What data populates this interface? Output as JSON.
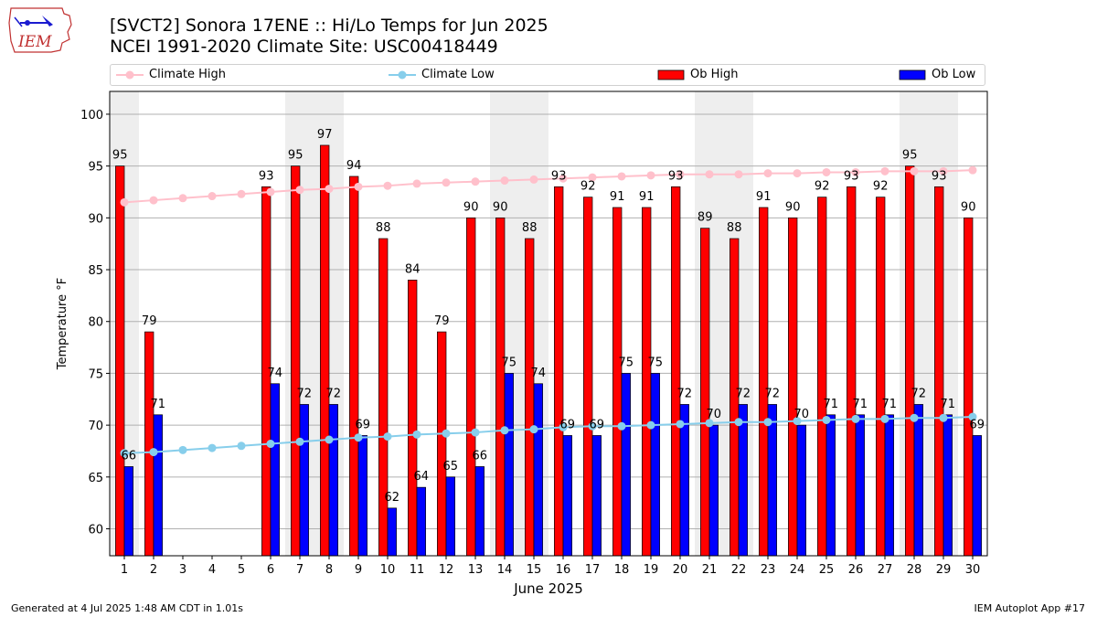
{
  "header": {
    "title_line1": "[SVCT2] Sonora 17ENE :: Hi/Lo Temps for Jun 2025",
    "title_line2": "NCEI 1991-2020 Climate Site: USC00418449",
    "logo_text": "IEM"
  },
  "footer": {
    "generated": "Generated at 4 Jul 2025 1:48 AM CDT in 1.01s",
    "app": "IEM Autoplot App #17"
  },
  "colors": {
    "ob_high": "#ff0000",
    "ob_low": "#0000ff",
    "climate_high": "#ffc0cb",
    "climate_low": "#87ceeb",
    "weekend_shade": "#eeeeee",
    "grid": "#b0b0b0"
  },
  "chart_data": {
    "type": "bar",
    "xlabel": "June 2025",
    "ylabel": "Temperature °F",
    "ylim": [
      57.4,
      102.2
    ],
    "yticks": [
      60,
      65,
      70,
      75,
      80,
      85,
      90,
      95,
      100
    ],
    "grid": "horizontal",
    "legend_position": "top",
    "categories": [
      1,
      2,
      3,
      4,
      5,
      6,
      7,
      8,
      9,
      10,
      11,
      12,
      13,
      14,
      15,
      16,
      17,
      18,
      19,
      20,
      21,
      22,
      23,
      24,
      25,
      26,
      27,
      28,
      29,
      30
    ],
    "shaded_days": [
      1,
      7,
      8,
      14,
      15,
      21,
      22,
      28,
      29
    ],
    "series": [
      {
        "name": "Ob High",
        "kind": "bar",
        "values": [
          95,
          79,
          null,
          null,
          null,
          93,
          95,
          97,
          94,
          88,
          84,
          79,
          90,
          90,
          88,
          93,
          92,
          91,
          91,
          93,
          89,
          88,
          91,
          90,
          92,
          93,
          92,
          95,
          93,
          90
        ]
      },
      {
        "name": "Ob Low",
        "kind": "bar",
        "values": [
          66,
          71,
          null,
          null,
          null,
          74,
          72,
          72,
          69,
          62,
          64,
          65,
          66,
          75,
          74,
          69,
          69,
          75,
          75,
          72,
          70,
          72,
          72,
          70,
          71,
          71,
          71,
          72,
          71,
          69
        ]
      },
      {
        "name": "Climate High",
        "kind": "line",
        "values": [
          91.5,
          91.7,
          91.9,
          92.1,
          92.3,
          92.5,
          92.7,
          92.8,
          93.0,
          93.1,
          93.3,
          93.4,
          93.5,
          93.6,
          93.7,
          93.8,
          93.9,
          94.0,
          94.1,
          94.2,
          94.2,
          94.2,
          94.3,
          94.3,
          94.4,
          94.4,
          94.5,
          94.5,
          94.5,
          94.6
        ]
      },
      {
        "name": "Climate Low",
        "kind": "line",
        "values": [
          67.3,
          67.4,
          67.6,
          67.8,
          68.0,
          68.2,
          68.4,
          68.6,
          68.8,
          68.9,
          69.1,
          69.2,
          69.3,
          69.5,
          69.6,
          69.8,
          69.9,
          69.9,
          70.0,
          70.1,
          70.2,
          70.3,
          70.3,
          70.4,
          70.5,
          70.6,
          70.6,
          70.7,
          70.7,
          70.8
        ]
      }
    ]
  }
}
